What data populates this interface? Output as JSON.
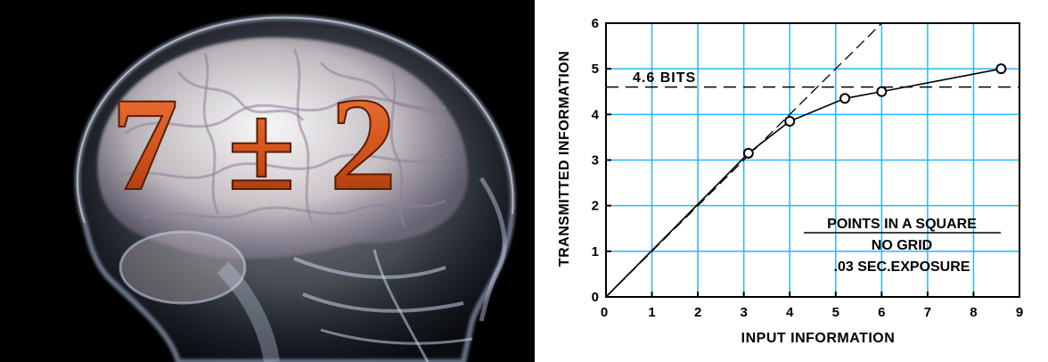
{
  "image": {
    "left_panel": {
      "illustration": "x-ray-head-brain",
      "headline": "7±2",
      "headline_parts": {
        "left": "7",
        "middle": "±",
        "right": "2"
      },
      "colors": {
        "headline": "#d2521c",
        "background": "#000000",
        "glow": "#cfd9ea"
      }
    }
  },
  "chart_data": {
    "type": "line",
    "title": "",
    "xlabel": "INPUT INFORMATION",
    "ylabel": "TRANSMITTED INFORMATION",
    "xlim": [
      0,
      9
    ],
    "ylim": [
      0,
      6
    ],
    "xticks": [
      0,
      1,
      2,
      3,
      4,
      5,
      6,
      7,
      8,
      9
    ],
    "yticks": [
      0,
      1,
      2,
      3,
      4,
      5,
      6
    ],
    "xtick_labels": [
      "0",
      "1",
      "2",
      "3",
      "4",
      "5",
      "6",
      "7",
      "8",
      "9"
    ],
    "ytick_labels": [
      "0",
      "1",
      "2",
      "3",
      "4",
      "5",
      "6"
    ],
    "grid": true,
    "grid_color": "#29b6f6",
    "legend": "none",
    "series": [
      {
        "style": "solid-line-with-open-circles",
        "x": [
          0,
          3.1,
          4.0,
          5.2,
          6.0,
          8.6
        ],
        "y": [
          0,
          3.15,
          3.85,
          4.35,
          4.5,
          5.0
        ],
        "marker_points": [
          [
            3.1,
            3.15
          ],
          [
            4.0,
            3.85
          ],
          [
            5.2,
            4.35
          ],
          [
            6.0,
            4.5
          ],
          [
            8.6,
            5.0
          ]
        ]
      }
    ],
    "reference_lines": [
      {
        "style": "dashed",
        "type": "identity",
        "from": [
          0,
          0
        ],
        "to": [
          6,
          6
        ]
      },
      {
        "style": "dashed",
        "type": "horizontal",
        "y": 4.6,
        "label": "4.6 BITS"
      }
    ],
    "annotation_lines": [
      {
        "text": "POINTS IN A SQUARE",
        "underline": true
      },
      {
        "text": "NO GRID",
        "underline": false
      },
      {
        "text": ".03 SEC.EXPOSURE",
        "underline": false
      }
    ]
  }
}
